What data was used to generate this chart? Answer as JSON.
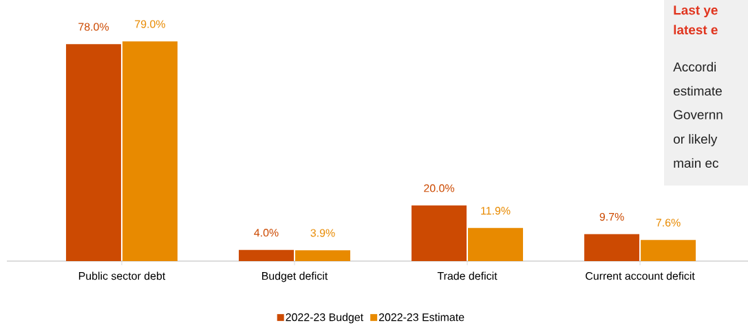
{
  "chart_data": {
    "type": "bar",
    "categories": [
      "Public sector debt",
      "Budget deficit",
      "Trade deficit",
      "Current account deficit"
    ],
    "series": [
      {
        "name": "2022-23 Budget",
        "color": "#cc4a02",
        "values": [
          78.0,
          4.0,
          20.0,
          9.7
        ],
        "value_labels": [
          "78.0%",
          "4.0%",
          "20.0%",
          "9.7%"
        ]
      },
      {
        "name": "2022-23 Estimate",
        "color": "#e88a00",
        "values": [
          79.0,
          3.9,
          11.9,
          7.6
        ],
        "value_labels": [
          "79.0%",
          "3.9%",
          "11.9%",
          "7.6%"
        ]
      }
    ],
    "legend": "bottom",
    "grid": false,
    "annotations": [
      "**Last ye**",
      "**latest e**",
      "Accordi",
      "estimate",
      "Governn",
      "or likely",
      "main ec"
    ]
  }
}
